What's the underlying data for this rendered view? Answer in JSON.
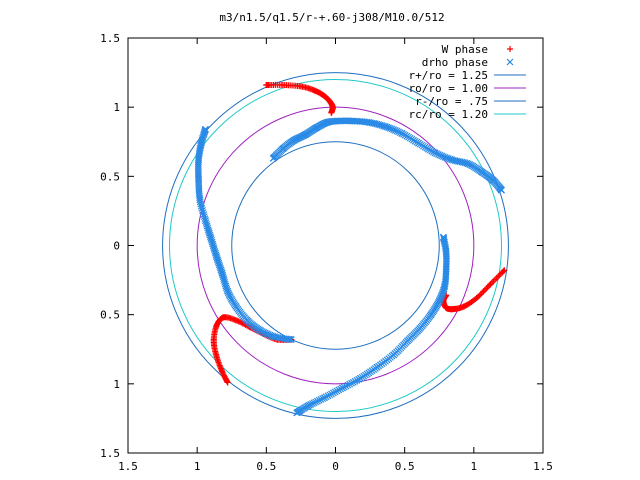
{
  "chart_data": {
    "type": "scatter",
    "title": "m3/n1.5/q1.5/r-+.60-j308/M10.0/512",
    "xlabel": "",
    "ylabel": "",
    "xlim": [
      -1.5,
      1.5
    ],
    "ylim": [
      -1.5,
      1.5
    ],
    "x_tick_values": [
      -1.5,
      -1,
      -0.5,
      0,
      0.5,
      1,
      1.5
    ],
    "x_tick_labels": [
      "1.5",
      "1",
      "0.5",
      "0",
      "0.5",
      "1",
      "1.5"
    ],
    "y_tick_values": [
      1.5,
      1,
      0.5,
      0,
      -0.5,
      -1,
      -1.5
    ],
    "y_tick_labels": [
      "1.5",
      "1",
      "0.5",
      "0",
      "0.5",
      "1",
      "1.5"
    ],
    "grid": false,
    "legend_position": "top-right",
    "circles": [
      {
        "label": "r+/ro = 1.25",
        "radius": 1.25,
        "color": "#1f6fbf"
      },
      {
        "label": "ro/ro = 1.00",
        "radius": 1.0,
        "color": "#a020c0"
      },
      {
        "label": "r-/ro = .75",
        "radius": 0.75,
        "color": "#1f6fbf"
      },
      {
        "label": "rc/ro = 1.20",
        "radius": 1.2,
        "color": "#20c8c8"
      }
    ],
    "series": [
      {
        "name": "W phase",
        "marker": "+",
        "color": "#ff0000",
        "arms": [
          [
            [
              -0.5,
              1.16
            ],
            [
              -0.38,
              1.16
            ],
            [
              -0.25,
              1.15
            ],
            [
              -0.15,
              1.12
            ],
            [
              -0.08,
              1.08
            ],
            [
              -0.04,
              1.04
            ],
            [
              -0.02,
              1.0
            ],
            [
              -0.03,
              0.96
            ]
          ],
          [
            [
              1.22,
              -0.18
            ],
            [
              1.12,
              -0.28
            ],
            [
              1.02,
              -0.38
            ],
            [
              0.93,
              -0.44
            ],
            [
              0.85,
              -0.46
            ],
            [
              0.8,
              -0.45
            ],
            [
              0.78,
              -0.4
            ],
            [
              0.8,
              -0.36
            ]
          ],
          [
            [
              -0.78,
              -0.99
            ],
            [
              -0.82,
              -0.91
            ],
            [
              -0.86,
              -0.8
            ],
            [
              -0.88,
              -0.69
            ],
            [
              -0.86,
              -0.58
            ],
            [
              -0.81,
              -0.52
            ],
            [
              -0.72,
              -0.54
            ],
            [
              -0.62,
              -0.59
            ],
            [
              -0.52,
              -0.64
            ],
            [
              -0.42,
              -0.68
            ],
            [
              -0.32,
              -0.68
            ]
          ]
        ]
      },
      {
        "name": "drho phase",
        "marker": "x",
        "color": "#2a8ae6",
        "arms": [
          [
            [
              -0.45,
              0.63
            ],
            [
              -0.38,
              0.7
            ],
            [
              -0.3,
              0.76
            ],
            [
              -0.22,
              0.8
            ],
            [
              -0.14,
              0.85
            ],
            [
              -0.06,
              0.89
            ],
            [
              0.02,
              0.9
            ],
            [
              0.12,
              0.9
            ],
            [
              0.24,
              0.89
            ],
            [
              0.36,
              0.86
            ],
            [
              0.48,
              0.81
            ],
            [
              0.6,
              0.74
            ],
            [
              0.72,
              0.67
            ],
            [
              0.84,
              0.62
            ],
            [
              0.96,
              0.59
            ],
            [
              1.06,
              0.53
            ],
            [
              1.14,
              0.47
            ],
            [
              1.2,
              0.4
            ]
          ],
          [
            [
              0.78,
              0.06
            ],
            [
              0.8,
              -0.05
            ],
            [
              0.8,
              -0.17
            ],
            [
              0.79,
              -0.29
            ],
            [
              0.75,
              -0.4
            ],
            [
              0.69,
              -0.5
            ],
            [
              0.61,
              -0.6
            ],
            [
              0.52,
              -0.69
            ],
            [
              0.42,
              -0.79
            ],
            [
              0.3,
              -0.88
            ],
            [
              0.18,
              -0.96
            ],
            [
              0.05,
              -1.03
            ],
            [
              -0.08,
              -1.1
            ],
            [
              -0.2,
              -1.16
            ],
            [
              -0.28,
              -1.21
            ]
          ],
          [
            [
              -0.32,
              -0.68
            ],
            [
              -0.44,
              -0.66
            ],
            [
              -0.55,
              -0.61
            ],
            [
              -0.64,
              -0.54
            ],
            [
              -0.72,
              -0.44
            ],
            [
              -0.78,
              -0.33
            ],
            [
              -0.82,
              -0.2
            ],
            [
              -0.86,
              -0.08
            ],
            [
              -0.9,
              0.05
            ],
            [
              -0.94,
              0.18
            ],
            [
              -0.98,
              0.33
            ],
            [
              -0.99,
              0.48
            ],
            [
              -0.99,
              0.62
            ],
            [
              -0.97,
              0.74
            ],
            [
              -0.94,
              0.84
            ]
          ]
        ]
      }
    ]
  }
}
